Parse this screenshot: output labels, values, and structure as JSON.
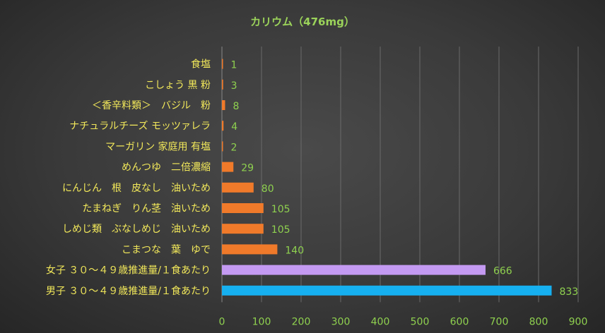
{
  "chart_data": {
    "type": "bar",
    "orientation": "horizontal",
    "title": "カリウム（476mg）",
    "xlim": [
      0,
      900
    ],
    "xticks": [
      0,
      100,
      200,
      300,
      400,
      500,
      600,
      700,
      800,
      900
    ],
    "grid": "vertical",
    "legend": "none",
    "categories": [
      "食塩",
      "こしょう 黒 粉",
      "＜香辛料類＞　バジル　粉",
      "ナチュラルチーズ モッツァレラ",
      "マーガリン 家庭用 有塩",
      "めんつゆ　二倍濃縮",
      "にんじん　根　皮なし　油いため",
      "たまねぎ　りん茎　油いため",
      "しめじ類　ぶなしめじ　油いため",
      "こまつな　葉　ゆで",
      "女子 ３０～４９歳推進量/１食あたり",
      "男子 ３０～４９歳推進量/１食あたり"
    ],
    "values": [
      1,
      3,
      8,
      4,
      2,
      29,
      80,
      105,
      105,
      140,
      666,
      833
    ],
    "bar_colors": [
      "#f07a2a",
      "#f07a2a",
      "#f07a2a",
      "#f07a2a",
      "#f07a2a",
      "#f07a2a",
      "#f07a2a",
      "#f07a2a",
      "#f07a2a",
      "#f07a2a",
      "#c49af2",
      "#16b0f0"
    ]
  }
}
